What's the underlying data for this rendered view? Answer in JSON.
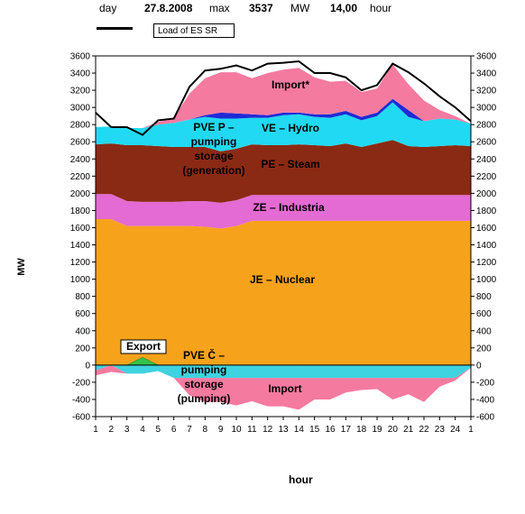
{
  "header": {
    "day_label": "day",
    "date": "27.8.2008",
    "max_label": "max",
    "max_value": "3537",
    "unit": "MW",
    "time": "14,00",
    "time_unit": "hour"
  },
  "legend": {
    "load_label": "Load of ES SR"
  },
  "chart_data": {
    "type": "area",
    "ylabel": "MW",
    "xlabel": "hour",
    "ylim": [
      -600,
      3600
    ],
    "yticks": [
      -600,
      -400,
      -200,
      0,
      200,
      400,
      600,
      800,
      1000,
      1200,
      1400,
      1600,
      1800,
      2000,
      2200,
      2400,
      2600,
      2800,
      3000,
      3200,
      3400,
      3600
    ],
    "x": [
      "1",
      "2",
      "3",
      "4",
      "5",
      "6",
      "7",
      "8",
      "9",
      "10",
      "11",
      "12",
      "13",
      "14",
      "15",
      "16",
      "17",
      "18",
      "19",
      "20",
      "21",
      "22",
      "23",
      "24",
      "1"
    ],
    "positive_series": [
      {
        "name": "JE – Nuclear",
        "color": "#f7a21b",
        "values": [
          1700,
          1700,
          1620,
          1620,
          1620,
          1620,
          1620,
          1610,
          1590,
          1620,
          1680,
          1680,
          1680,
          1680,
          1680,
          1680,
          1680,
          1680,
          1680,
          1680,
          1680,
          1680,
          1680,
          1680,
          1680
        ]
      },
      {
        "name": "ZE – Industria",
        "color": "#e36bd3",
        "values": [
          290,
          290,
          290,
          280,
          280,
          280,
          290,
          300,
          300,
          300,
          300,
          300,
          300,
          300,
          300,
          300,
          300,
          300,
          300,
          300,
          300,
          300,
          300,
          300,
          300
        ]
      },
      {
        "name": "PE – Steam",
        "color": "#8b2a14",
        "values": [
          580,
          590,
          650,
          660,
          650,
          640,
          630,
          630,
          600,
          600,
          590,
          580,
          580,
          590,
          580,
          570,
          600,
          560,
          600,
          640,
          570,
          560,
          570,
          580,
          570
        ]
      },
      {
        "name": "VE – Hydro",
        "color": "#21d9f2",
        "values": [
          200,
          200,
          200,
          200,
          250,
          280,
          320,
          350,
          380,
          350,
          310,
          320,
          350,
          350,
          330,
          330,
          340,
          310,
          320,
          440,
          340,
          300,
          320,
          300,
          260
        ]
      },
      {
        "name": "PVE P – pumping storage (generation)",
        "color": "#1f2bd6",
        "values": [
          0,
          0,
          0,
          0,
          0,
          0,
          0,
          20,
          70,
          60,
          40,
          30,
          30,
          20,
          30,
          40,
          40,
          40,
          40,
          40,
          80,
          0,
          0,
          0,
          0
        ]
      },
      {
        "name": "Import*",
        "color": "#f57aa0",
        "values": [
          0,
          0,
          0,
          0,
          30,
          60,
          300,
          430,
          470,
          480,
          420,
          490,
          500,
          520,
          430,
          380,
          350,
          290,
          280,
          400,
          300,
          240,
          100,
          40,
          0
        ]
      }
    ],
    "negative_series": [
      {
        "name": "PVE Č – pumping storage (pumping)",
        "color": "#3fd2e0",
        "values": [
          -60,
          0,
          -100,
          -100,
          -70,
          -150,
          -150,
          -150,
          -150,
          -150,
          -150,
          -150,
          -150,
          -150,
          -150,
          -150,
          -150,
          -150,
          -150,
          -150,
          -150,
          -150,
          -150,
          -150,
          -30
        ]
      },
      {
        "name": "Import",
        "color": "#f57aa0",
        "values": [
          -60,
          -80,
          0,
          0,
          0,
          0,
          -200,
          -280,
          -280,
          -320,
          -270,
          -330,
          -330,
          -370,
          -250,
          -250,
          -170,
          -140,
          -130,
          -250,
          -190,
          -280,
          -100,
          -30,
          0
        ]
      }
    ],
    "export_series": {
      "name": "Export",
      "color": "#33c24a",
      "values": [
        0,
        0,
        0,
        90,
        0,
        0,
        0,
        0,
        0,
        0,
        0,
        0,
        0,
        0,
        0,
        0,
        0,
        0,
        0,
        0,
        0,
        0,
        0,
        0,
        0
      ]
    },
    "load_line": {
      "name": "Load of ES SR",
      "values": [
        2940,
        2770,
        2770,
        2680,
        2850,
        2870,
        3240,
        3430,
        3450,
        3490,
        3430,
        3510,
        3520,
        3537,
        3400,
        3400,
        3350,
        3200,
        3260,
        3510,
        3410,
        3280,
        3130,
        3000,
        2840
      ]
    },
    "area_labels": {
      "import_top": "Import*",
      "hydro": "VE – Hydro",
      "pve_p": [
        "PVE P –",
        "pumping",
        "storage",
        "(generation)"
      ],
      "steam": "PE – Steam",
      "industria": "ZE – Industria",
      "nuclear": "JE – Nuclear",
      "export": "Export",
      "pve_c": [
        "PVE Č –",
        "pumping",
        "storage",
        "(pumping)"
      ],
      "import_bottom": "Import"
    }
  }
}
